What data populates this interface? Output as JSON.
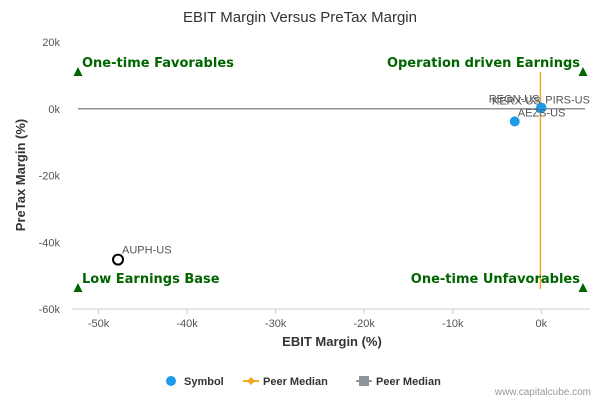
{
  "chart_data": {
    "type": "scatter",
    "title": "EBIT Margin Versus PreTax Margin",
    "xlabel": "EBIT Margin (%)",
    "ylabel": "PreTax Margin (%)",
    "xlim": [
      -53000,
      5500
    ],
    "ylim": [
      -60000,
      20000
    ],
    "x_ticks": [
      {
        "value": -50000,
        "label": "-50k"
      },
      {
        "value": -40000,
        "label": "-40k"
      },
      {
        "value": -30000,
        "label": "-30k"
      },
      {
        "value": -20000,
        "label": "-20k"
      },
      {
        "value": -10000,
        "label": "-10k"
      },
      {
        "value": 0,
        "label": "0k"
      }
    ],
    "y_ticks": [
      {
        "value": 20000,
        "label": "20k"
      },
      {
        "value": 0,
        "label": "0k"
      },
      {
        "value": -20000,
        "label": "-20k"
      },
      {
        "value": -40000,
        "label": "-40k"
      },
      {
        "value": -60000,
        "label": "-60k"
      }
    ],
    "points": [
      {
        "label": "AUPH-US",
        "x": -47800,
        "y": -45200,
        "style": "subject"
      },
      {
        "label": "AEZS-US",
        "x": -3000,
        "y": -3800,
        "style": "peer"
      },
      {
        "label": "PIRS-US",
        "x": 0,
        "y": 300,
        "style": "peer"
      },
      {
        "label": "KERX-US",
        "x": -60,
        "y": 100,
        "style": "peer"
      },
      {
        "label": "REGN-US",
        "x": 20,
        "y": 350,
        "style": "peer"
      }
    ],
    "peer_median_x": -100,
    "peer_median_y": 0,
    "quadrants": {
      "top_left": "One-time Favorables",
      "top_right": "Operation driven Earnings",
      "bottom_left": "Low Earnings Base",
      "bottom_right": "One-time Unfavorables"
    },
    "legend": [
      {
        "label": "Symbol",
        "marker": "circle",
        "color": "#1e9be9"
      },
      {
        "label": "Peer Median",
        "marker": "line-diamond",
        "color": "#f5a623"
      },
      {
        "label": "Peer Median",
        "marker": "square",
        "color": "#8c949c"
      }
    ],
    "legend_position": "bottom",
    "grid": false,
    "colors": {
      "peer_point": "#1e9be9",
      "subject_point": "#000000",
      "median_x_line": "#f5a623",
      "median_y_line": "#8c949c",
      "quadrant_text": "#006400",
      "quadrant_marker": "#006400"
    }
  },
  "credit": "www.capitalcube.com"
}
